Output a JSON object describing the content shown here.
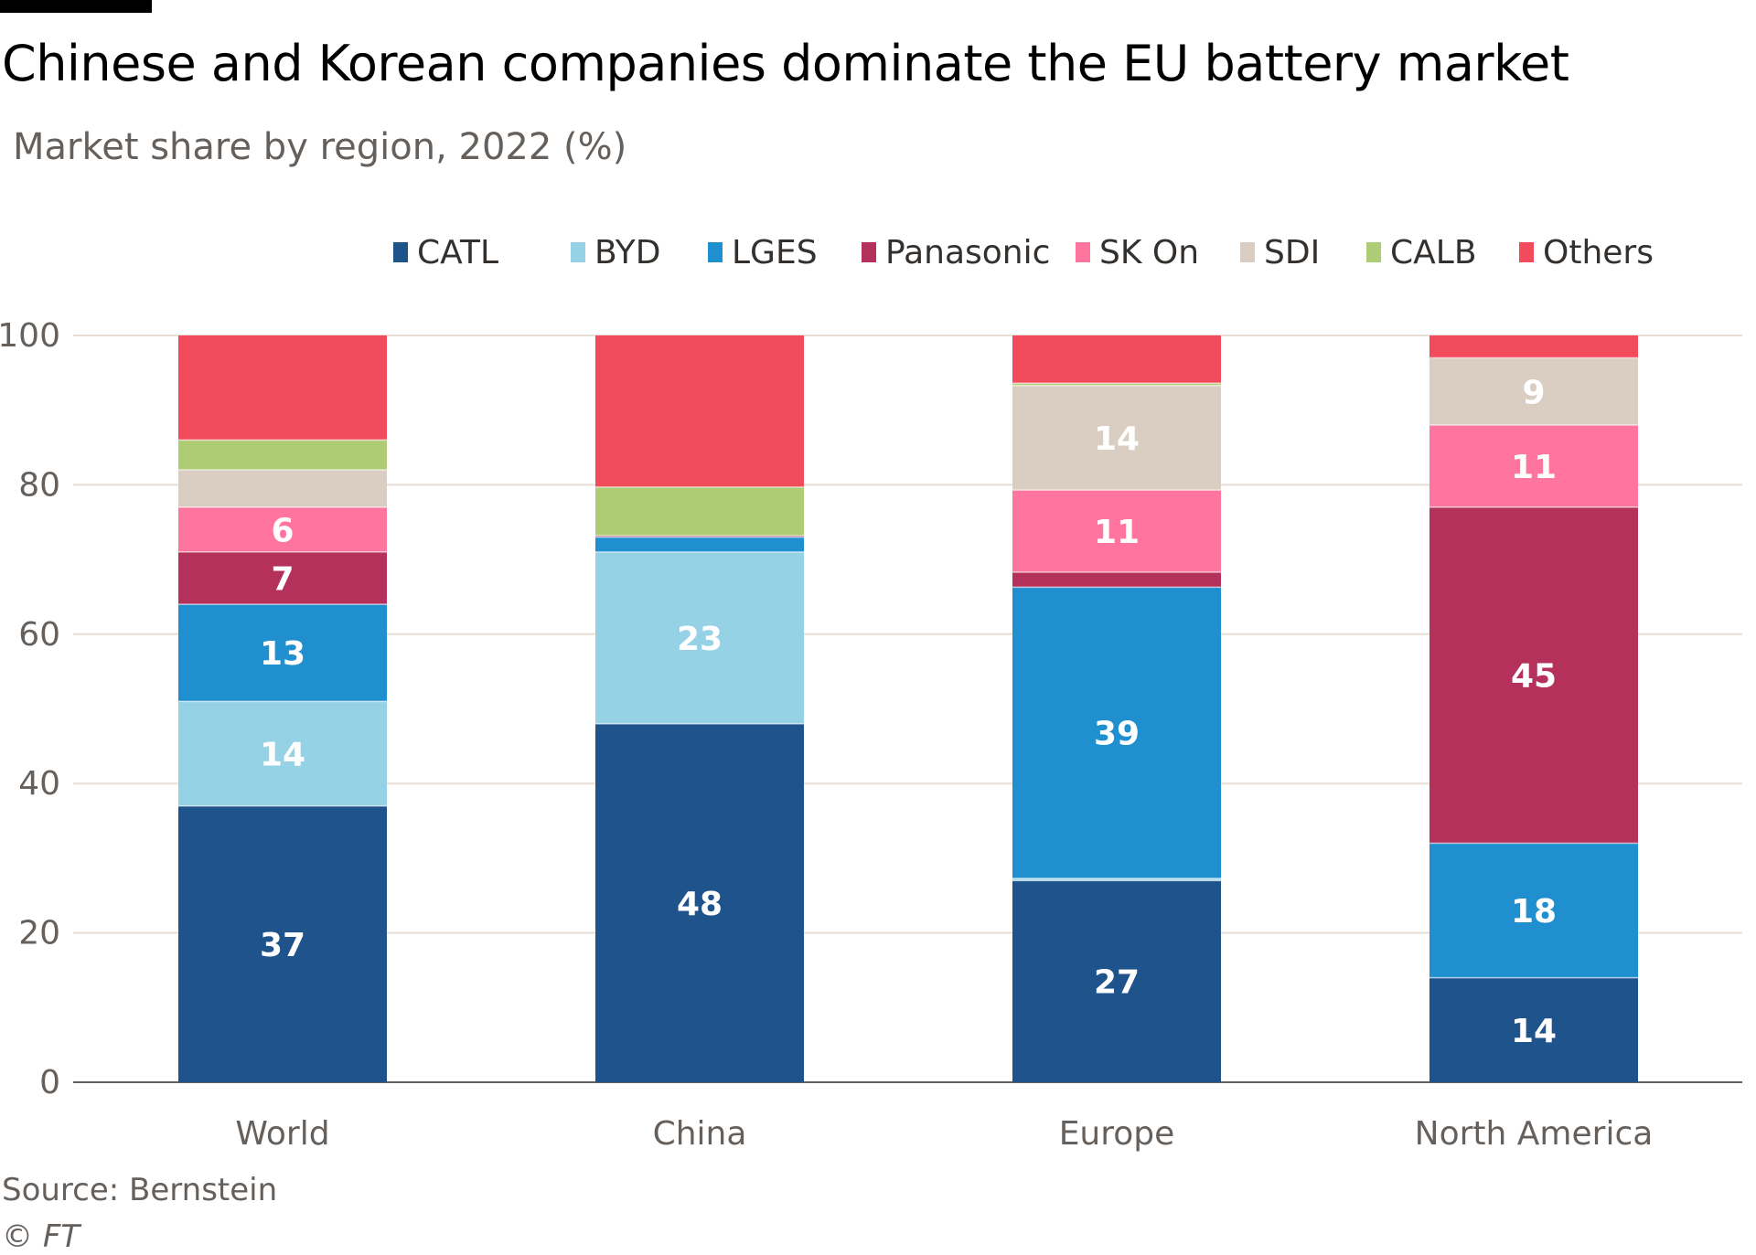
{
  "header": {
    "title": "Chinese and Korean companies dominate the EU battery market",
    "subtitle": "Market share by region, 2022 (%)"
  },
  "footer": {
    "source": "Source: Bernstein",
    "copyright_symbol": "©",
    "copyright_name": "FT"
  },
  "chart_data": {
    "type": "bar",
    "stacked": true,
    "ylim": [
      0,
      100
    ],
    "yticks": [
      0,
      20,
      40,
      60,
      80,
      100
    ],
    "grid": true,
    "legend_position": "top",
    "categories": [
      "World",
      "China",
      "Europe",
      "North America"
    ],
    "series": [
      {
        "name": "CATL",
        "color": "#1f538c",
        "label_color": "#ffffff",
        "values": [
          37,
          48,
          27,
          14
        ],
        "labels": [
          "37",
          "48",
          "27",
          "14"
        ]
      },
      {
        "name": "BYD",
        "color": "#96d2e6",
        "label_color": "#ffffff",
        "values": [
          14,
          23,
          0.3,
          0
        ],
        "labels": [
          "14",
          "23",
          "",
          ""
        ]
      },
      {
        "name": "LGES",
        "color": "#1f8fcf",
        "label_color": "#ffffff",
        "values": [
          13,
          2,
          39,
          18
        ],
        "labels": [
          "13",
          "",
          "39",
          "18"
        ]
      },
      {
        "name": "Panasonic",
        "color": "#b3315a",
        "label_color": "#ffffff",
        "values": [
          7,
          0.2,
          2,
          45
        ],
        "labels": [
          "7",
          "",
          "",
          "45"
        ]
      },
      {
        "name": "SK On",
        "color": "#ff75a0",
        "label_color": "#ffffff",
        "values": [
          6,
          0,
          11,
          11
        ],
        "labels": [
          "6",
          "",
          "11",
          "11"
        ]
      },
      {
        "name": "SDI",
        "color": "#dacdc2",
        "label_color": "#ffffff",
        "values": [
          5,
          0,
          14,
          9
        ],
        "labels": [
          "",
          "",
          "14",
          "9"
        ]
      },
      {
        "name": "CALB",
        "color": "#aecc74",
        "label_color": "#ffffff",
        "values": [
          4,
          6.5,
          0.3,
          0
        ],
        "labels": [
          "",
          "",
          "",
          ""
        ]
      },
      {
        "name": "Others",
        "color": "#f24c5c",
        "label_color": "#ffffff",
        "values": [
          14,
          20.3,
          6.4,
          3
        ],
        "labels": [
          "",
          "",
          "",
          ""
        ]
      }
    ]
  }
}
